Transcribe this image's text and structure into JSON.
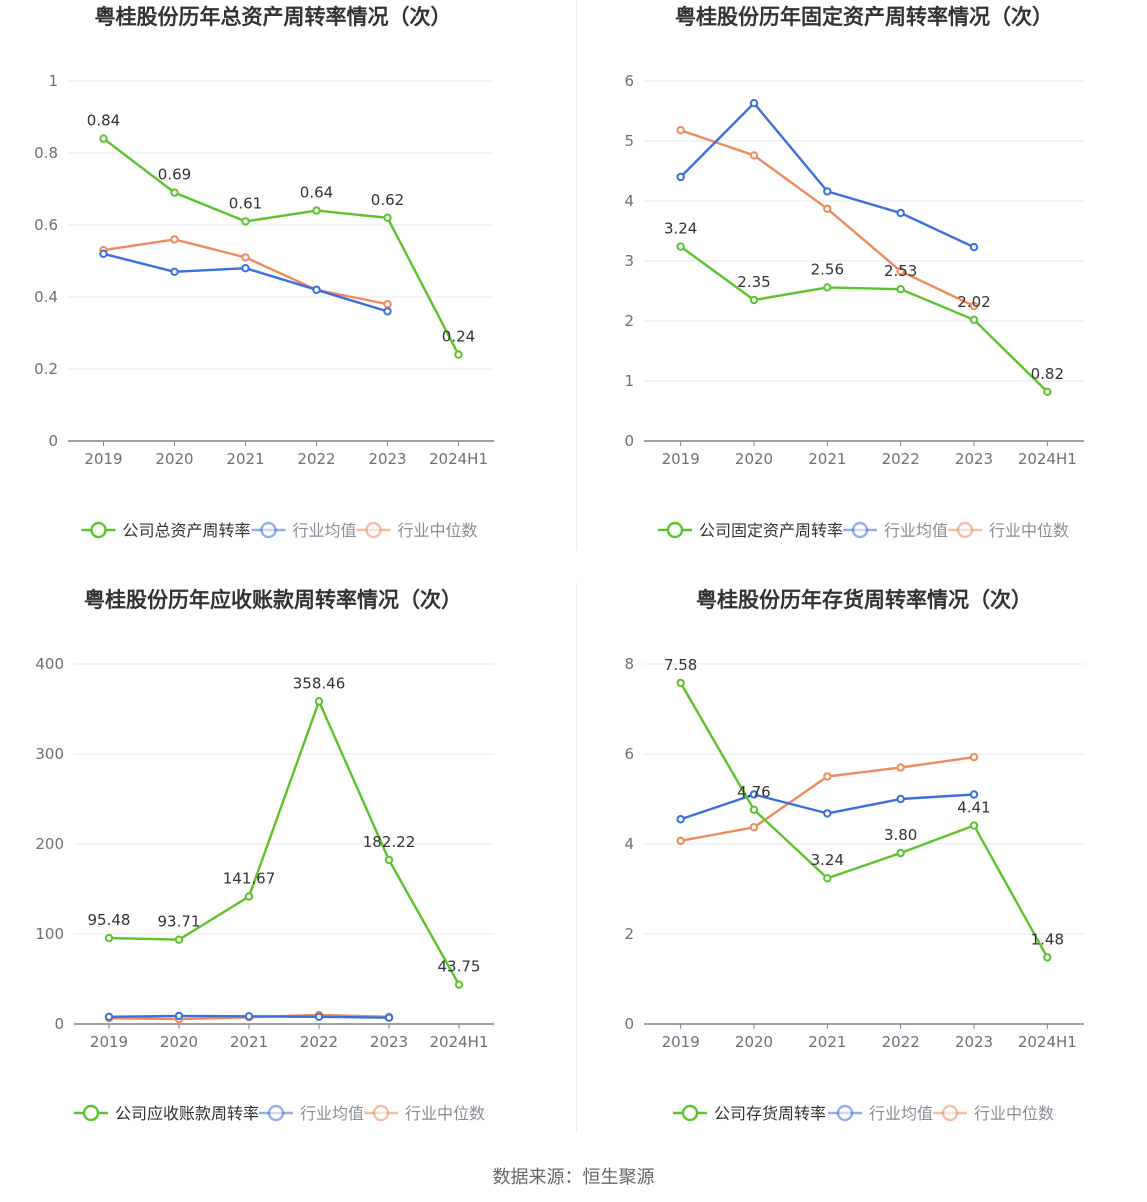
{
  "source": {
    "label": "数据来源：",
    "name": "恒生聚源"
  },
  "colors": {
    "company": "#5ac42a",
    "industry_avg": "#3a6fdc",
    "industry_median": "#f08a5d",
    "grid": "#e6e9f0",
    "axis": "#7d8291",
    "tick_text": "#6e7079",
    "label_text": "#333333"
  },
  "chart_data": [
    {
      "type": "line",
      "title": "粤桂股份历年总资产周转率情况（次）",
      "categories": [
        "2019",
        "2020",
        "2021",
        "2022",
        "2023",
        "2024H1"
      ],
      "ylim": [
        0,
        1
      ],
      "yticks": [
        "0",
        "0.2",
        "0.4",
        "0.6",
        "0.8",
        "1"
      ],
      "grid": true,
      "legend_position": "bottom-center",
      "series": [
        {
          "name": "公司总资产周转率",
          "color": "#5ac42a",
          "values": [
            0.84,
            0.69,
            0.61,
            0.64,
            0.62,
            0.24
          ],
          "labels": [
            "0.84",
            "0.69",
            "0.61",
            "0.64",
            "0.62",
            "0.24"
          ]
        },
        {
          "name": "行业均值",
          "color": "#3a6fdc",
          "values": [
            0.52,
            0.47,
            0.48,
            0.42,
            0.36,
            null
          ]
        },
        {
          "name": "行业中位数",
          "color": "#f08a5d",
          "values": [
            0.53,
            0.56,
            0.51,
            0.42,
            0.38,
            null
          ]
        }
      ]
    },
    {
      "type": "line",
      "title": "粤桂股份历年固定资产周转率情况（次）",
      "categories": [
        "2019",
        "2020",
        "2021",
        "2022",
        "2023",
        "2024H1"
      ],
      "ylim": [
        0,
        6
      ],
      "yticks": [
        "0",
        "1",
        "2",
        "3",
        "4",
        "5",
        "6"
      ],
      "grid": true,
      "legend_position": "bottom-center",
      "series": [
        {
          "name": "公司固定资产周转率",
          "color": "#5ac42a",
          "values": [
            3.24,
            2.35,
            2.56,
            2.53,
            2.02,
            0.82
          ],
          "labels": [
            "3.24",
            "2.35",
            "2.56",
            "2.53",
            "2.02",
            "0.82"
          ]
        },
        {
          "name": "行业均值",
          "color": "#3a6fdc",
          "values": [
            4.4,
            5.63,
            4.16,
            3.8,
            3.23,
            null
          ]
        },
        {
          "name": "行业中位数",
          "color": "#f08a5d",
          "values": [
            5.18,
            4.76,
            3.87,
            2.83,
            2.25,
            null
          ]
        }
      ]
    },
    {
      "type": "line",
      "title": "粤桂股份历年应收账款周转率情况（次）",
      "categories": [
        "2019",
        "2020",
        "2021",
        "2022",
        "2023",
        "2024H1"
      ],
      "ylim": [
        0,
        400
      ],
      "yticks": [
        "0",
        "100",
        "200",
        "300",
        "400"
      ],
      "grid": true,
      "legend_position": "bottom-center",
      "series": [
        {
          "name": "公司应收账款周转率",
          "color": "#5ac42a",
          "values": [
            95.48,
            93.71,
            141.67,
            358.46,
            182.22,
            43.75
          ],
          "labels": [
            "95.48",
            "93.71",
            "141.67",
            "358.46",
            "182.22",
            "43.75"
          ]
        },
        {
          "name": "行业均值",
          "color": "#3a6fdc",
          "values": [
            8,
            9,
            8.5,
            8,
            7,
            null
          ]
        },
        {
          "name": "行业中位数",
          "color": "#f08a5d",
          "values": [
            6.5,
            5.5,
            7.5,
            10,
            8,
            null
          ]
        }
      ]
    },
    {
      "type": "line",
      "title": "粤桂股份历年存货周转率情况（次）",
      "categories": [
        "2019",
        "2020",
        "2021",
        "2022",
        "2023",
        "2024H1"
      ],
      "ylim": [
        0,
        8
      ],
      "yticks": [
        "0",
        "2",
        "4",
        "6",
        "8"
      ],
      "grid": true,
      "legend_position": "bottom-center",
      "series": [
        {
          "name": "公司存货周转率",
          "color": "#5ac42a",
          "values": [
            7.58,
            4.76,
            3.24,
            3.8,
            4.41,
            1.48
          ],
          "labels": [
            "7.58",
            "4.76",
            "3.24",
            "3.80",
            "4.41",
            "1.48"
          ]
        },
        {
          "name": "行业均值",
          "color": "#3a6fdc",
          "values": [
            4.55,
            5.1,
            4.68,
            5.0,
            5.1,
            null
          ]
        },
        {
          "name": "行业中位数",
          "color": "#f08a5d",
          "values": [
            4.07,
            4.37,
            5.5,
            5.7,
            5.93,
            null
          ]
        }
      ]
    }
  ]
}
